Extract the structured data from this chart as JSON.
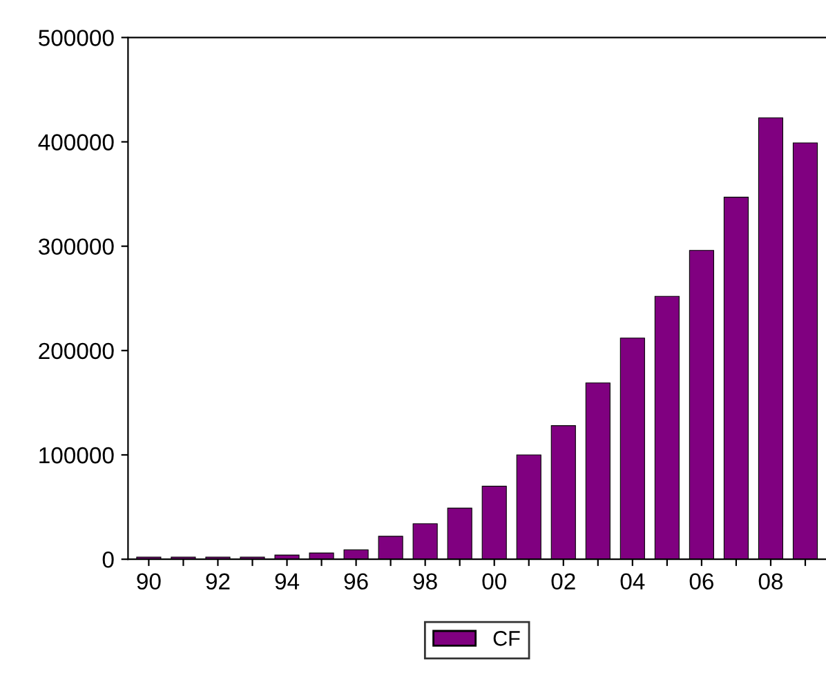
{
  "chart_data": {
    "type": "bar",
    "categories": [
      "90",
      null,
      "92",
      null,
      "94",
      null,
      "96",
      null,
      "98",
      null,
      "00",
      null,
      "02",
      null,
      "04",
      null,
      "06",
      null,
      "08",
      null
    ],
    "series": [
      {
        "name": "CF",
        "color": "#800080",
        "values": [
          2000,
          2000,
          2000,
          2000,
          4000,
          6000,
          9000,
          22000,
          34000,
          49000,
          70000,
          100000,
          128000,
          169000,
          212000,
          252000,
          296000,
          347000,
          423000,
          399000
        ]
      }
    ],
    "ylim": [
      0,
      500000
    ],
    "yticks": [
      0,
      100000,
      200000,
      300000,
      400000,
      500000
    ],
    "grid": false,
    "legend": "bottom"
  }
}
